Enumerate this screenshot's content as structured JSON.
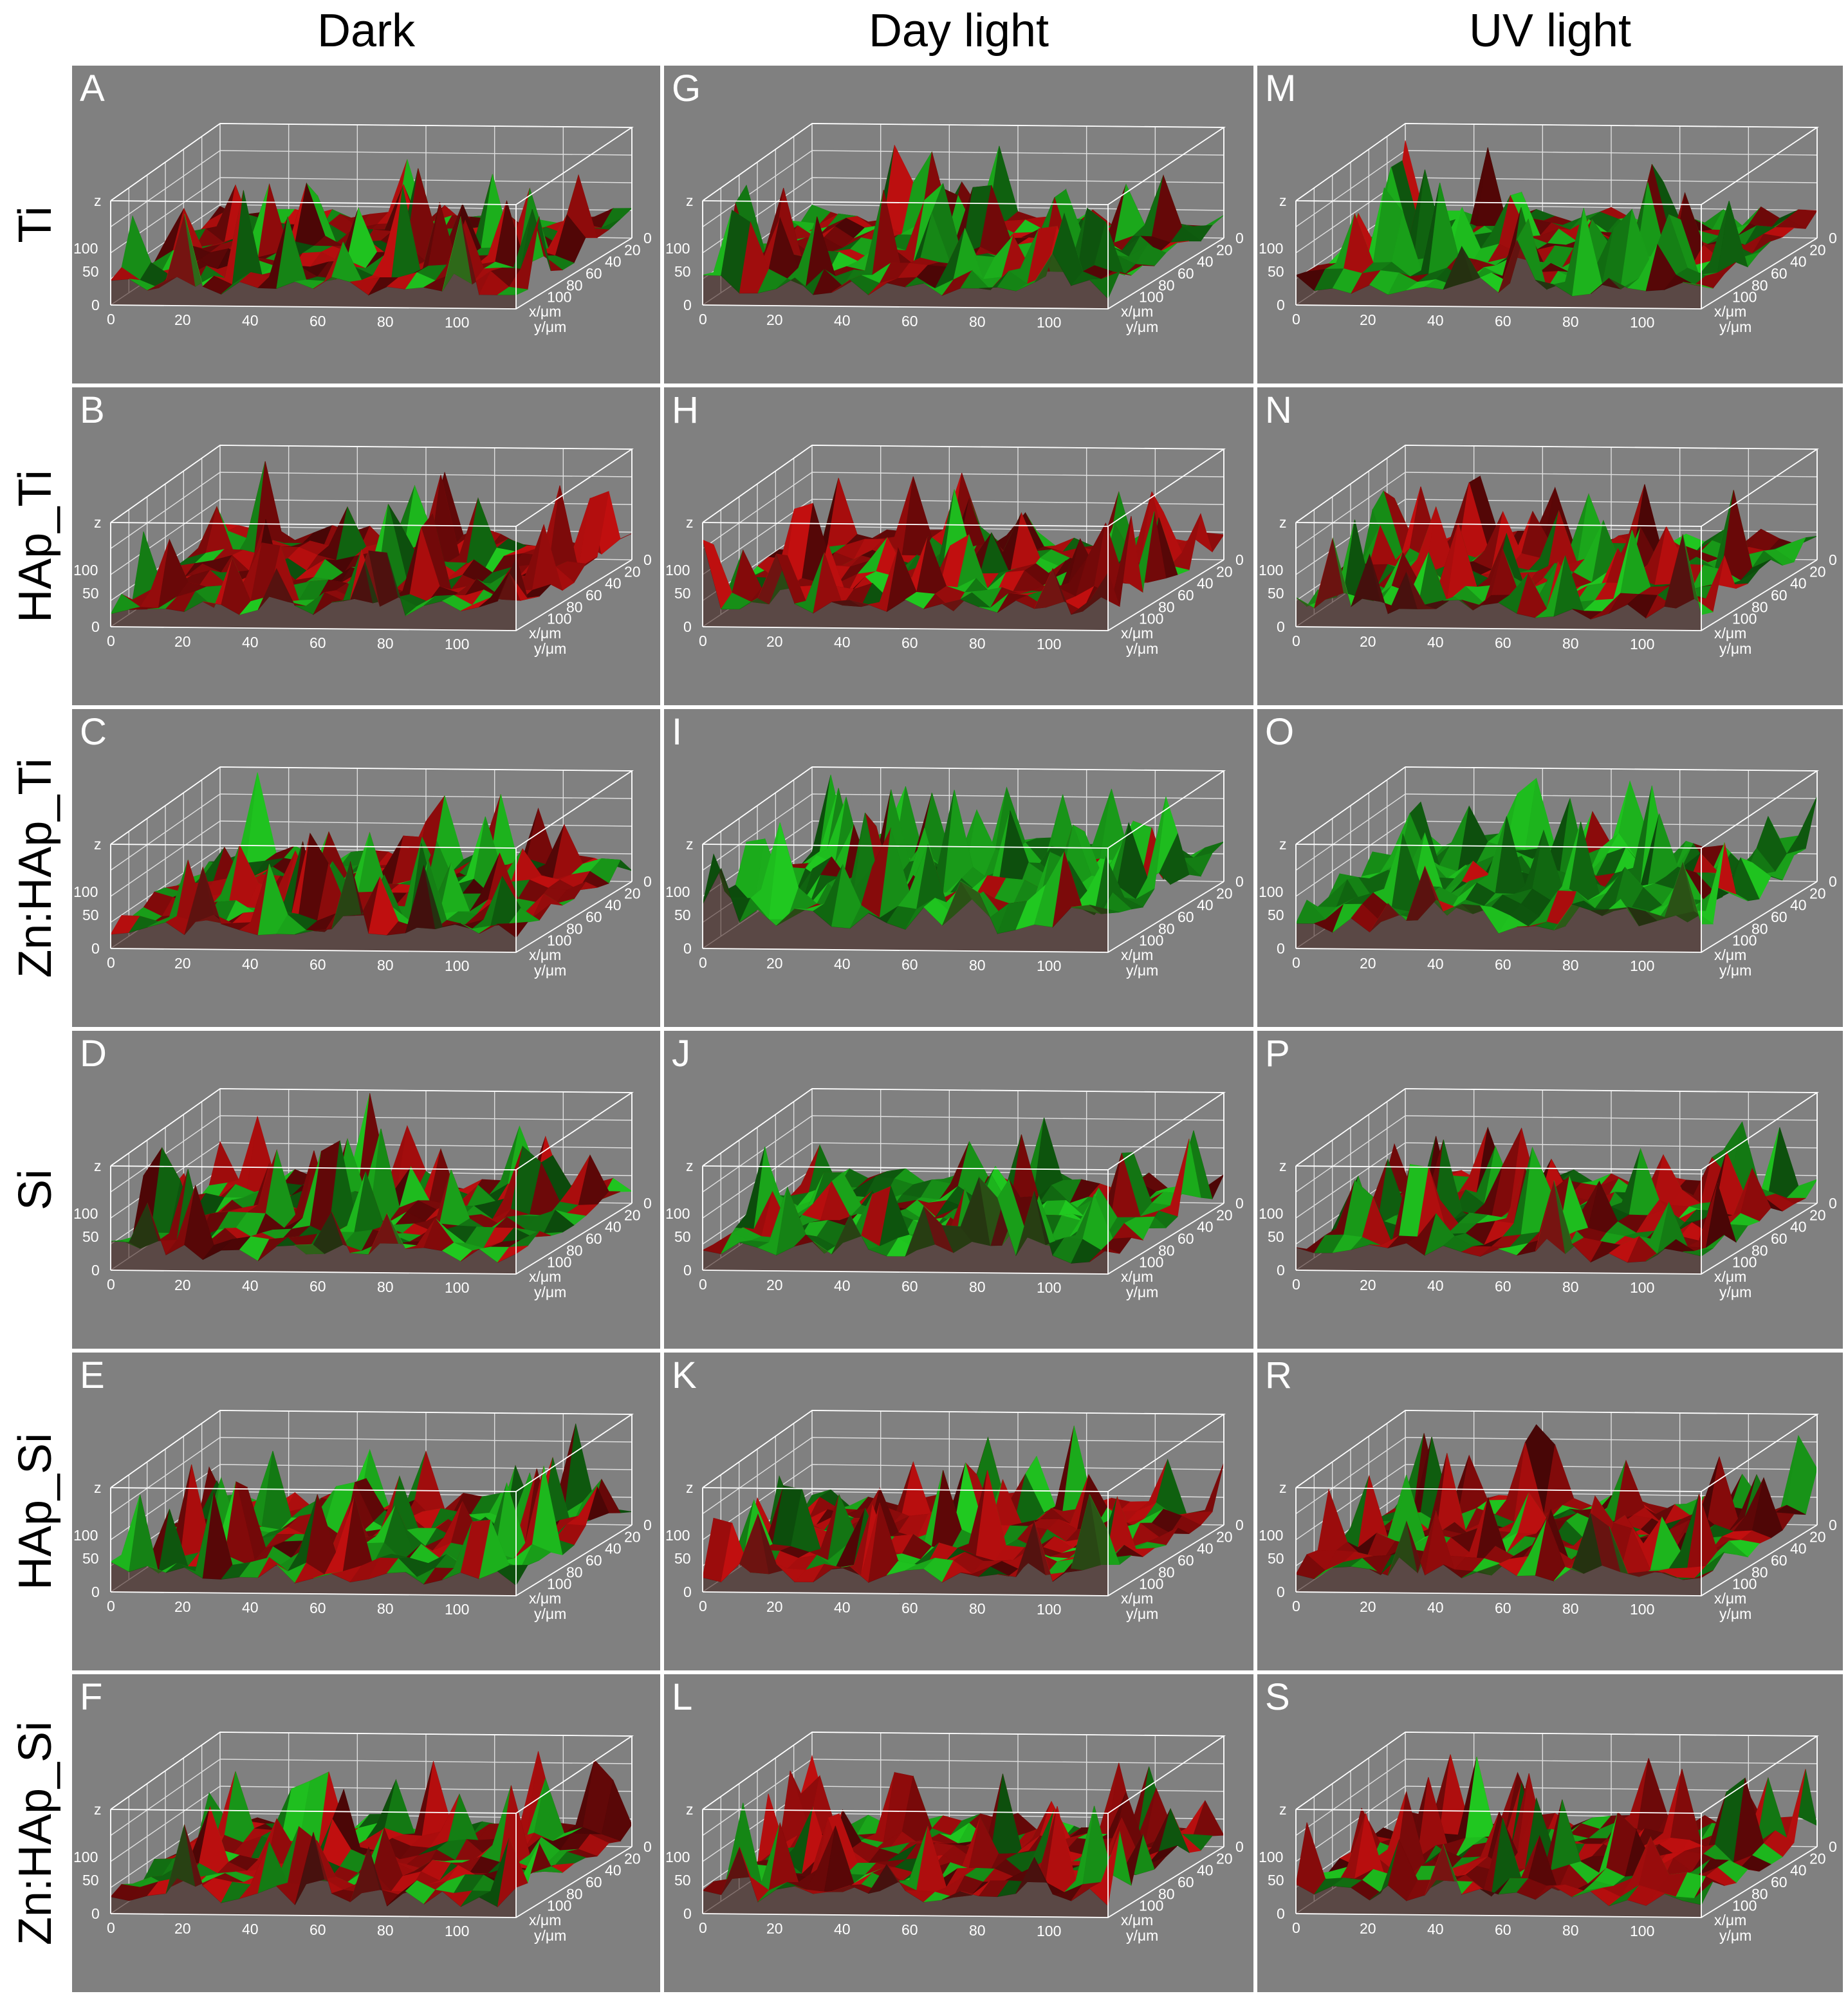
{
  "columns": [
    {
      "label": "Dark"
    },
    {
      "label": "Day light"
    },
    {
      "label": "UV light"
    }
  ],
  "rows": [
    {
      "label": "Ti"
    },
    {
      "label": "HAp_Ti"
    },
    {
      "label": "Zn:HAp_Ti"
    },
    {
      "label": "Si"
    },
    {
      "label": "HAp_Si"
    },
    {
      "label": "Zn:HAp_Si"
    }
  ],
  "panels": [
    {
      "letter": "A",
      "green_fraction": 0.35
    },
    {
      "letter": "G",
      "green_fraction": 0.55
    },
    {
      "letter": "M",
      "green_fraction": 0.7
    },
    {
      "letter": "B",
      "green_fraction": 0.25
    },
    {
      "letter": "H",
      "green_fraction": 0.3
    },
    {
      "letter": "N",
      "green_fraction": 0.45
    },
    {
      "letter": "C",
      "green_fraction": 0.4
    },
    {
      "letter": "I",
      "green_fraction": 0.9
    },
    {
      "letter": "O",
      "green_fraction": 0.92
    },
    {
      "letter": "D",
      "green_fraction": 0.5
    },
    {
      "letter": "J",
      "green_fraction": 0.75
    },
    {
      "letter": "P",
      "green_fraction": 0.5
    },
    {
      "letter": "E",
      "green_fraction": 0.5
    },
    {
      "letter": "K",
      "green_fraction": 0.35
    },
    {
      "letter": "R",
      "green_fraction": 0.4
    },
    {
      "letter": "F",
      "green_fraction": 0.35
    },
    {
      "letter": "L",
      "green_fraction": 0.3
    },
    {
      "letter": "S",
      "green_fraction": 0.3
    }
  ],
  "axes": {
    "x_ticks": [
      "0",
      "20",
      "40",
      "60",
      "80",
      "100"
    ],
    "y_ticks": [
      "0",
      "20",
      "40",
      "60",
      "80",
      "100"
    ],
    "z_ticks": [
      "50",
      "100"
    ],
    "x_label": "x/μm",
    "y_label": "y/μm",
    "z_label": "z"
  },
  "colors": {
    "panel_background": "#808080",
    "red_signal": "#cc1010",
    "green_signal": "#22d422",
    "box_lines": "#ffffff"
  }
}
